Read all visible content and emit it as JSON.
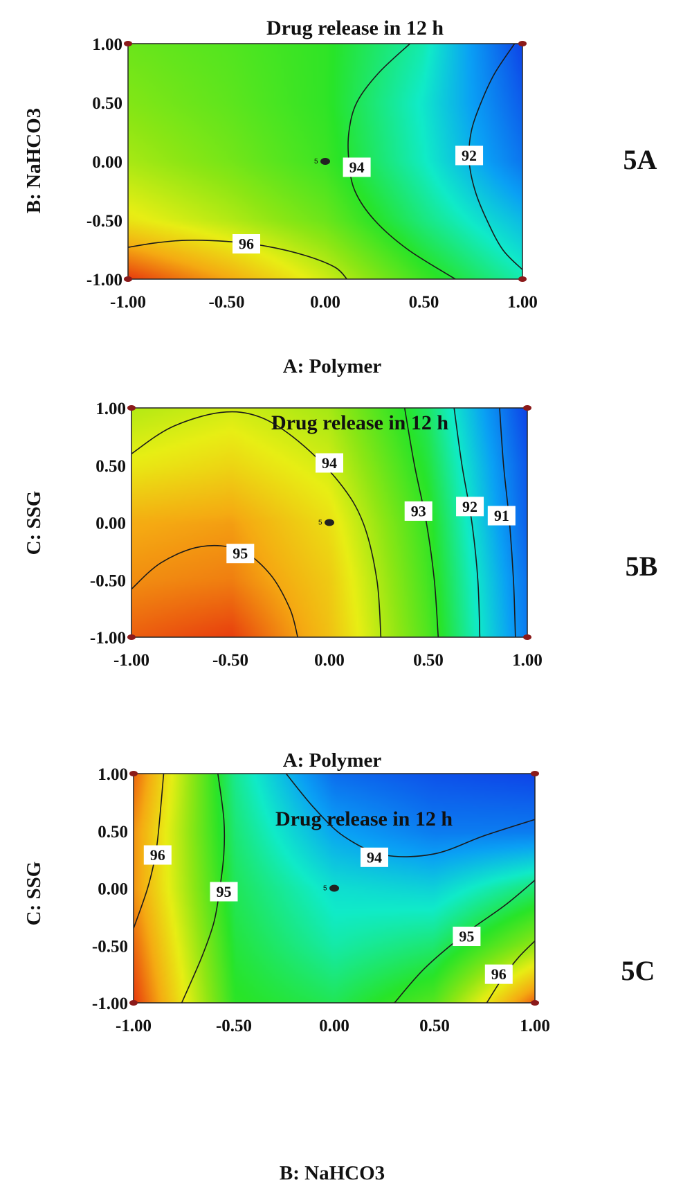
{
  "colors": {
    "contour_line": "#1a1a1a",
    "frame": "#222222",
    "corner_marker": "#8b1a1a",
    "high_response": "#e8420e",
    "mid_response": "#66e00e",
    "low_response": "#0e5ee8"
  },
  "chart_data": [
    {
      "type": "contour",
      "panel_label": "5A",
      "title": "Drug release in 12 h",
      "xlabel": "A: Polymer",
      "ylabel": "B: NaHCO3",
      "xlim": [
        -1.0,
        1.0
      ],
      "ylim": [
        -1.0,
        1.0
      ],
      "x_ticks": [
        "-1.00",
        "-0.50",
        "0.00",
        "0.50",
        "1.00"
      ],
      "y_ticks": [
        "1.00",
        "0.50",
        "0.00",
        "-0.50",
        "-1.00"
      ],
      "center_point": {
        "x": 0.0,
        "y": 0.0,
        "label": "5"
      },
      "contours": [
        {
          "level": 96,
          "label": "96",
          "label_at": [
            -0.4,
            -0.7
          ],
          "points": [
            [
              -1.0,
              -0.73
            ],
            [
              -0.85,
              -0.69
            ],
            [
              -0.7,
              -0.67
            ],
            [
              -0.5,
              -0.68
            ],
            [
              -0.3,
              -0.72
            ],
            [
              -0.1,
              -0.8
            ],
            [
              0.05,
              -0.9
            ],
            [
              0.11,
              -1.0
            ]
          ]
        },
        {
          "level": 94,
          "label": "94",
          "label_at": [
            0.16,
            -0.05
          ],
          "points": [
            [
              0.43,
              1.0
            ],
            [
              0.27,
              0.75
            ],
            [
              0.16,
              0.5
            ],
            [
              0.12,
              0.25
            ],
            [
              0.12,
              0.0
            ],
            [
              0.15,
              -0.25
            ],
            [
              0.25,
              -0.5
            ],
            [
              0.42,
              -0.75
            ],
            [
              0.66,
              -1.0
            ]
          ]
        },
        {
          "level": 92,
          "label": "92",
          "label_at": [
            0.73,
            0.05
          ],
          "points": [
            [
              0.96,
              1.0
            ],
            [
              0.86,
              0.75
            ],
            [
              0.79,
              0.5
            ],
            [
              0.74,
              0.25
            ],
            [
              0.73,
              0.0
            ],
            [
              0.76,
              -0.25
            ],
            [
              0.82,
              -0.5
            ],
            [
              0.9,
              -0.75
            ],
            [
              1.0,
              -0.92
            ]
          ]
        }
      ],
      "response_grid": {
        "x": [
          -1.0,
          -0.5,
          0.0,
          0.5,
          1.0
        ],
        "y": [
          -1.0,
          -0.5,
          0.0,
          0.5,
          1.0
        ],
        "z": [
          [
            97.6,
            96.8,
            95.8,
            94.6,
            93.6
          ],
          [
            96.1,
            95.6,
            95.0,
            93.9,
            92.9
          ],
          [
            95.5,
            95.1,
            94.6,
            93.5,
            92.1
          ],
          [
            95.2,
            94.9,
            94.5,
            93.4,
            91.8
          ],
          [
            95.0,
            94.8,
            94.5,
            93.6,
            91.5
          ]
        ]
      }
    },
    {
      "type": "contour",
      "panel_label": "5B",
      "title": "Drug release in 12 h",
      "xlabel": "A: Polymer",
      "ylabel": "C: SSG",
      "xlim": [
        -1.0,
        1.0
      ],
      "ylim": [
        -1.0,
        1.0
      ],
      "x_ticks": [
        "-1.00",
        "-0.50",
        "0.00",
        "0.50",
        "1.00"
      ],
      "y_ticks": [
        "1.00",
        "0.50",
        "0.00",
        "-0.50",
        "-1.00"
      ],
      "center_point": {
        "x": 0.0,
        "y": 0.0,
        "label": "5"
      },
      "contours": [
        {
          "level": 95,
          "label": "95",
          "label_at": [
            -0.45,
            -0.27
          ],
          "points": [
            [
              -1.0,
              -0.58
            ],
            [
              -0.85,
              -0.35
            ],
            [
              -0.65,
              -0.21
            ],
            [
              -0.45,
              -0.24
            ],
            [
              -0.3,
              -0.45
            ],
            [
              -0.2,
              -0.75
            ],
            [
              -0.16,
              -1.0
            ]
          ]
        },
        {
          "level": 94,
          "label": "94",
          "label_at": [
            0.0,
            0.52
          ],
          "points": [
            [
              -1.0,
              0.6
            ],
            [
              -0.8,
              0.83
            ],
            [
              -0.55,
              0.96
            ],
            [
              -0.35,
              0.92
            ],
            [
              -0.15,
              0.7
            ],
            [
              0.05,
              0.35
            ],
            [
              0.17,
              0.0
            ],
            [
              0.24,
              -0.5
            ],
            [
              0.26,
              -1.0
            ]
          ]
        },
        {
          "level": 93,
          "label": "93",
          "label_at": [
            0.45,
            0.1
          ],
          "points": [
            [
              0.38,
              1.0
            ],
            [
              0.43,
              0.5
            ],
            [
              0.49,
              0.0
            ],
            [
              0.53,
              -0.5
            ],
            [
              0.55,
              -1.0
            ]
          ]
        },
        {
          "level": 92,
          "label": "92",
          "label_at": [
            0.71,
            0.14
          ],
          "points": [
            [
              0.63,
              1.0
            ],
            [
              0.67,
              0.5
            ],
            [
              0.72,
              0.0
            ],
            [
              0.75,
              -0.5
            ],
            [
              0.76,
              -1.0
            ]
          ]
        },
        {
          "level": 91,
          "label": "91",
          "label_at": [
            0.87,
            0.06
          ],
          "points": [
            [
              0.86,
              1.0
            ],
            [
              0.88,
              0.5
            ],
            [
              0.91,
              0.0
            ],
            [
              0.93,
              -0.5
            ],
            [
              0.94,
              -1.0
            ]
          ]
        }
      ],
      "response_grid": {
        "x": [
          -1.0,
          -0.5,
          0.0,
          0.5,
          1.0
        ],
        "y": [
          -1.0,
          -0.5,
          0.0,
          0.5,
          1.0
        ],
        "z": [
          [
            95.3,
            95.5,
            94.6,
            93.1,
            90.9
          ],
          [
            95.0,
            95.1,
            94.5,
            93.0,
            90.8
          ],
          [
            94.8,
            94.9,
            94.3,
            92.9,
            90.6
          ],
          [
            94.2,
            94.4,
            94.0,
            92.7,
            90.5
          ],
          [
            93.8,
            94.0,
            93.7,
            92.5,
            90.3
          ]
        ]
      }
    },
    {
      "type": "contour",
      "panel_label": "5C",
      "title": "Drug release in 12 h",
      "xlabel": "B: NaHCO3",
      "ylabel": "C: SSG",
      "xlim": [
        -1.0,
        1.0
      ],
      "ylim": [
        -1.0,
        1.0
      ],
      "x_ticks": [
        "-1.00",
        "-0.50",
        "0.00",
        "0.50",
        "1.00"
      ],
      "y_ticks": [
        "1.00",
        "0.50",
        "0.00",
        "-0.50",
        "-1.00"
      ],
      "center_point": {
        "x": 0.0,
        "y": 0.0,
        "label": "5"
      },
      "contours": [
        {
          "level": 96,
          "label": "96",
          "label_at": [
            -0.88,
            0.29
          ],
          "points": [
            [
              -0.85,
              1.0
            ],
            [
              -0.87,
              0.6
            ],
            [
              -0.89,
              0.3
            ],
            [
              -0.93,
              0.0
            ],
            [
              -1.0,
              -0.35
            ]
          ]
        },
        {
          "level": 95,
          "label": "95",
          "label_at": [
            -0.55,
            -0.03
          ],
          "points": [
            [
              -0.58,
              1.0
            ],
            [
              -0.55,
              0.6
            ],
            [
              -0.55,
              0.3
            ],
            [
              -0.57,
              0.0
            ],
            [
              -0.6,
              -0.3
            ],
            [
              -0.66,
              -0.6
            ],
            [
              -0.76,
              -1.0
            ]
          ]
        },
        {
          "level": 94,
          "label": "94",
          "label_at": [
            0.2,
            0.27
          ],
          "points": [
            [
              -0.24,
              1.0
            ],
            [
              -0.1,
              0.7
            ],
            [
              0.05,
              0.45
            ],
            [
              0.25,
              0.29
            ],
            [
              0.5,
              0.3
            ],
            [
              0.75,
              0.46
            ],
            [
              1.0,
              0.6
            ]
          ]
        },
        {
          "level": 95,
          "label": "95",
          "label_at": [
            0.66,
            -0.42
          ],
          "points": [
            [
              0.3,
              -1.0
            ],
            [
              0.45,
              -0.7
            ],
            [
              0.65,
              -0.4
            ],
            [
              0.85,
              -0.15
            ],
            [
              1.0,
              0.07
            ]
          ]
        },
        {
          "level": 96,
          "label": "96",
          "label_at": [
            0.82,
            -0.75
          ],
          "points": [
            [
              0.76,
              -1.0
            ],
            [
              0.84,
              -0.78
            ],
            [
              0.92,
              -0.6
            ],
            [
              1.0,
              -0.46
            ]
          ]
        }
      ],
      "response_grid": {
        "x": [
          -1.0,
          -0.5,
          0.0,
          0.5,
          1.0
        ],
        "y": [
          -1.0,
          -0.5,
          0.0,
          0.5,
          1.0
        ],
        "z": [
          [
            97.0,
            95.1,
            94.9,
            95.3,
            96.8
          ],
          [
            96.8,
            95.0,
            94.6,
            94.8,
            95.6
          ],
          [
            96.6,
            94.9,
            94.4,
            94.3,
            94.8
          ],
          [
            96.6,
            94.8,
            94.0,
            93.7,
            93.7
          ],
          [
            96.8,
            94.7,
            93.6,
            93.4,
            93.3
          ]
        ]
      }
    }
  ]
}
